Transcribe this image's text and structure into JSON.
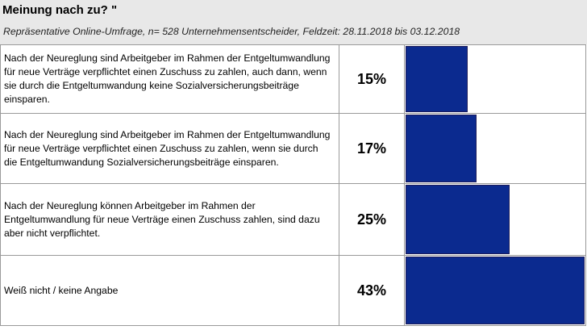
{
  "header": {
    "title": "Meinung nach zu? \"",
    "subtitle": "Repräsentative Online-Umfrage, n= 528 Unternehmensentscheider, Feldzeit: 28.11.2018 bis 03.12.2018"
  },
  "colors": {
    "bar": "#0b2a8f",
    "header_bg": "#e8e8e8"
  },
  "chart_data": {
    "type": "bar",
    "orientation": "horizontal",
    "categories": [
      "Nach der Neureglung sind Arbeitgeber im Rahmen der Entgeltumwandlung für neue Verträge verpflichtet einen Zuschuss zu zahlen, auch dann, wenn sie durch die Entgeltumwandung keine Sozialversicherungsbeiträge einsparen.",
      "Nach der Neureglung sind Arbeitgeber im Rahmen der Entgeltumwandlung für neue Verträge verpflichtet einen Zuschuss zu zahlen, wenn sie durch die Entgeltumwandung Sozialversicherungsbeiträge einsparen.",
      "Nach der Neureglung können Arbeitgeber im Rahmen der Entgeltumwandlung für neue Verträge einen Zuschuss zahlen, sind dazu aber nicht verpflichtet.",
      "Weiß nicht / keine Angabe"
    ],
    "values": [
      15,
      17,
      25,
      43
    ],
    "value_labels": [
      "15%",
      "17%",
      "25%",
      "43%"
    ],
    "xlim": [
      0,
      43
    ],
    "grid": false
  }
}
